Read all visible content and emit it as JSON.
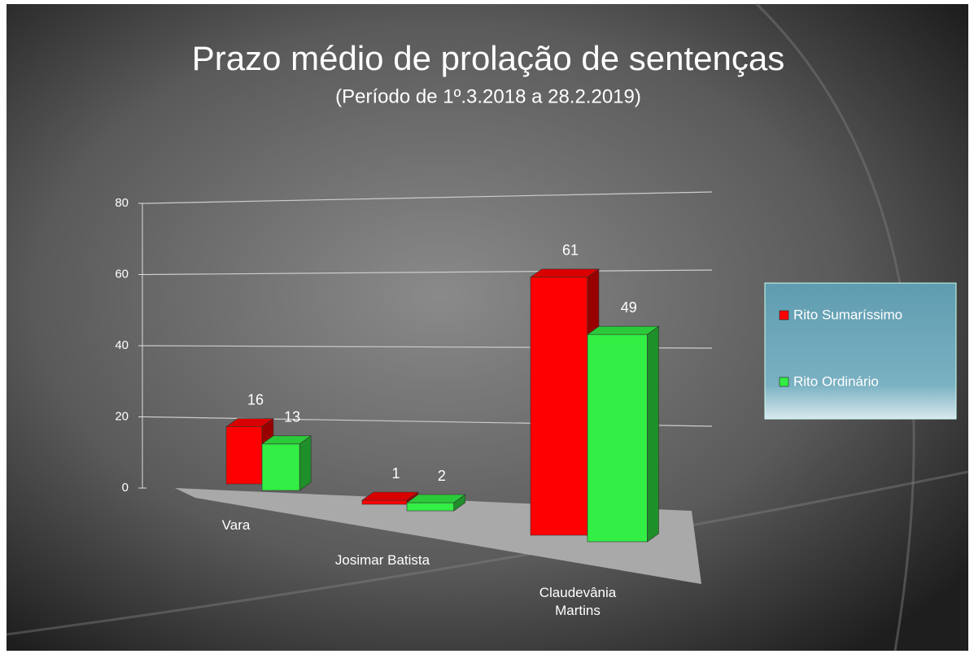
{
  "chart_data": {
    "type": "bar3d",
    "title": "Prazo médio de prolação de sentenças",
    "subtitle": "(Período de 1º.3.2018  a  28.2.2019)",
    "categories": [
      "Vara",
      "Josimar Batista",
      "Claudevânia Martins"
    ],
    "series": [
      {
        "name": "Rito Sumaríssimo",
        "color": "#ff0000",
        "values": [
          16,
          1,
          61
        ]
      },
      {
        "name": "Rito Ordinário",
        "color": "#33ee44",
        "values": [
          13,
          2,
          49
        ]
      }
    ],
    "ylim": [
      0,
      80
    ],
    "yticks": [
      0,
      20,
      40,
      60,
      80
    ],
    "grid": true,
    "legend": "right"
  }
}
